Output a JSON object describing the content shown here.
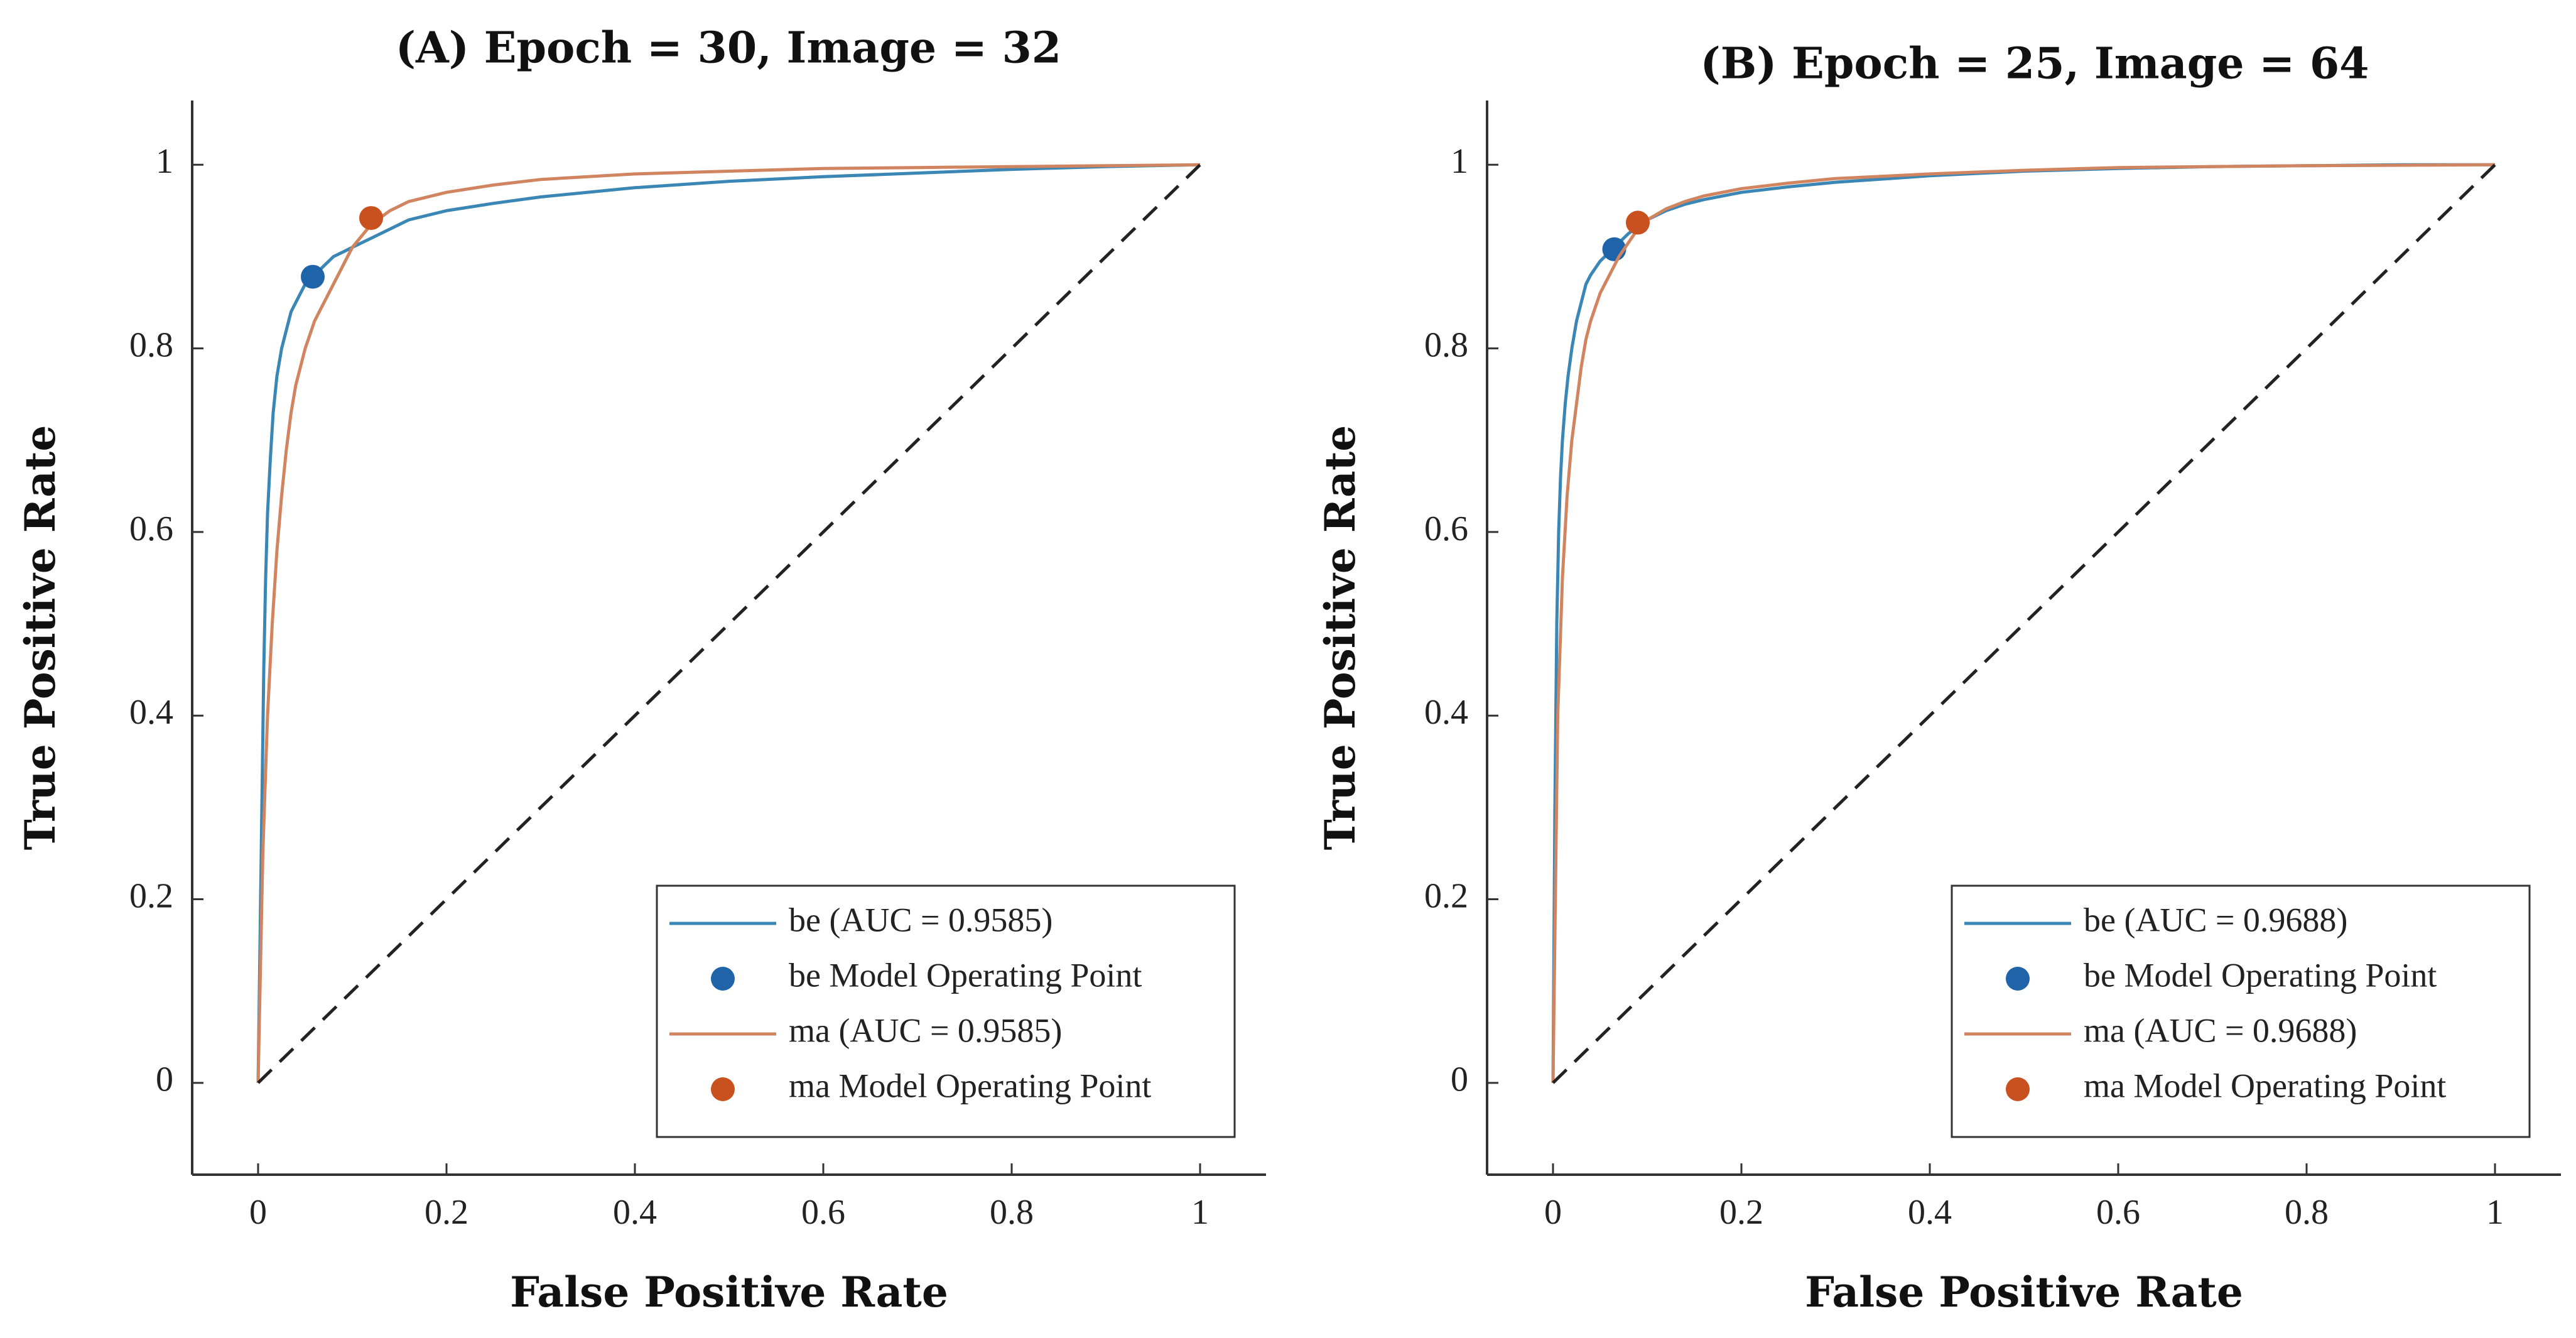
{
  "chart_data": [
    {
      "type": "line",
      "title": "(A) Epoch = 30, Image = 32",
      "xlabel": "False Positive Rate",
      "ylabel": "True Positive Rate",
      "xlim": [
        -0.07,
        1.07
      ],
      "ylim": [
        -0.1,
        1.07
      ],
      "xticks": [
        0,
        0.2,
        0.4,
        0.6,
        0.8,
        1
      ],
      "yticks": [
        0,
        0.2,
        0.4,
        0.6,
        0.8,
        1
      ],
      "xtick_labels": [
        "0",
        "0.2",
        "0.4",
        "0.6",
        "0.8",
        "1"
      ],
      "ytick_labels": [
        "0",
        "0.2",
        "0.4",
        "0.6",
        "0.8",
        "1"
      ],
      "grid": false,
      "legend_position": "bottom-right",
      "series": [
        {
          "name": "be (AUC = 0.9585)",
          "kind": "line",
          "color": "#3a86b4",
          "x": [
            0,
            0.002,
            0.004,
            0.006,
            0.008,
            0.01,
            0.013,
            0.016,
            0.02,
            0.025,
            0.03,
            0.035,
            0.04,
            0.045,
            0.05,
            0.06,
            0.07,
            0.08,
            0.09,
            0.1,
            0.12,
            0.14,
            0.16,
            0.2,
            0.25,
            0.3,
            0.4,
            0.5,
            0.6,
            0.7,
            0.8,
            0.9,
            1
          ],
          "y": [
            0,
            0.15,
            0.3,
            0.45,
            0.55,
            0.62,
            0.68,
            0.73,
            0.77,
            0.8,
            0.82,
            0.84,
            0.85,
            0.86,
            0.87,
            0.88,
            0.89,
            0.9,
            0.905,
            0.91,
            0.92,
            0.93,
            0.94,
            0.95,
            0.958,
            0.965,
            0.975,
            0.982,
            0.987,
            0.991,
            0.995,
            0.998,
            1
          ]
        },
        {
          "name": "be Model Operating Point",
          "kind": "point",
          "color": "#1f63a8",
          "x": [
            0.058
          ],
          "y": [
            0.878
          ]
        },
        {
          "name": "ma (AUC = 0.9585)",
          "kind": "line",
          "color": "#d08560",
          "x": [
            0,
            0.005,
            0.01,
            0.015,
            0.02,
            0.025,
            0.03,
            0.035,
            0.04,
            0.05,
            0.06,
            0.07,
            0.08,
            0.1,
            0.12,
            0.14,
            0.16,
            0.2,
            0.25,
            0.3,
            0.4,
            0.5,
            0.6,
            0.7,
            0.8,
            0.9,
            1
          ],
          "y": [
            0,
            0.25,
            0.4,
            0.5,
            0.58,
            0.64,
            0.69,
            0.73,
            0.76,
            0.8,
            0.83,
            0.85,
            0.87,
            0.91,
            0.935,
            0.95,
            0.96,
            0.97,
            0.978,
            0.984,
            0.99,
            0.993,
            0.996,
            0.997,
            0.998,
            0.999,
            1
          ]
        },
        {
          "name": "ma Model Operating Point",
          "kind": "point",
          "color": "#c9511f",
          "x": [
            0.12
          ],
          "y": [
            0.942
          ]
        },
        {
          "name": "chance",
          "kind": "dashed",
          "color": "#222222",
          "x": [
            0,
            1
          ],
          "y": [
            0,
            1
          ]
        }
      ],
      "legend": [
        {
          "label": "be (AUC = 0.9585)",
          "marker": "line",
          "color": "#3a86b4"
        },
        {
          "label": "be Model Operating Point",
          "marker": "dot",
          "color": "#1f63a8"
        },
        {
          "label": "ma (AUC = 0.9585)",
          "marker": "line",
          "color": "#d08560"
        },
        {
          "label": "ma Model Operating Point",
          "marker": "dot",
          "color": "#c9511f"
        }
      ]
    },
    {
      "type": "line",
      "title": "(B) Epoch = 25, Image = 64",
      "xlabel": "False Positive Rate",
      "ylabel": "True Positive Rate",
      "xlim": [
        -0.07,
        1.07
      ],
      "ylim": [
        -0.1,
        1.07
      ],
      "xticks": [
        0,
        0.2,
        0.4,
        0.6,
        0.8,
        1
      ],
      "yticks": [
        0,
        0.2,
        0.4,
        0.6,
        0.8,
        1
      ],
      "xtick_labels": [
        "0",
        "0.2",
        "0.4",
        "0.6",
        "0.8",
        "1"
      ],
      "ytick_labels": [
        "0",
        "0.2",
        "0.4",
        "0.6",
        "0.8",
        "1"
      ],
      "grid": false,
      "legend_position": "bottom-right",
      "series": [
        {
          "name": "be (AUC = 0.9688)",
          "kind": "line",
          "color": "#3a86b4",
          "x": [
            0,
            0.002,
            0.004,
            0.006,
            0.008,
            0.01,
            0.013,
            0.016,
            0.02,
            0.025,
            0.03,
            0.035,
            0.04,
            0.05,
            0.06,
            0.07,
            0.08,
            0.1,
            0.12,
            0.14,
            0.16,
            0.2,
            0.25,
            0.3,
            0.4,
            0.5,
            0.6,
            0.7,
            0.8,
            0.9,
            1
          ],
          "y": [
            0,
            0.3,
            0.5,
            0.6,
            0.66,
            0.7,
            0.74,
            0.77,
            0.8,
            0.83,
            0.85,
            0.87,
            0.88,
            0.895,
            0.905,
            0.915,
            0.925,
            0.94,
            0.95,
            0.957,
            0.962,
            0.97,
            0.976,
            0.981,
            0.988,
            0.993,
            0.996,
            0.998,
            0.999,
            1,
            1
          ]
        },
        {
          "name": "be Model Operating Point",
          "kind": "point",
          "color": "#1f63a8",
          "x": [
            0.065
          ],
          "y": [
            0.908
          ]
        },
        {
          "name": "ma (AUC = 0.9688)",
          "kind": "line",
          "color": "#d08560",
          "x": [
            0,
            0.005,
            0.01,
            0.015,
            0.02,
            0.025,
            0.03,
            0.035,
            0.04,
            0.05,
            0.06,
            0.07,
            0.08,
            0.09,
            0.1,
            0.12,
            0.14,
            0.16,
            0.2,
            0.25,
            0.3,
            0.4,
            0.5,
            0.6,
            0.8,
            1
          ],
          "y": [
            0,
            0.4,
            0.55,
            0.64,
            0.7,
            0.74,
            0.78,
            0.81,
            0.83,
            0.86,
            0.88,
            0.9,
            0.915,
            0.93,
            0.94,
            0.952,
            0.96,
            0.966,
            0.974,
            0.98,
            0.985,
            0.99,
            0.994,
            0.997,
            0.999,
            1
          ]
        },
        {
          "name": "ma Model Operating Point",
          "kind": "point",
          "color": "#c9511f",
          "x": [
            0.09
          ],
          "y": [
            0.937
          ]
        },
        {
          "name": "chance",
          "kind": "dashed",
          "color": "#222222",
          "x": [
            0,
            1
          ],
          "y": [
            0,
            1
          ]
        }
      ],
      "legend": [
        {
          "label": "be (AUC = 0.9688)",
          "marker": "line",
          "color": "#3a86b4"
        },
        {
          "label": "be Model Operating Point",
          "marker": "dot",
          "color": "#1f63a8"
        },
        {
          "label": "ma (AUC = 0.9688)",
          "marker": "line",
          "color": "#d08560"
        },
        {
          "label": "ma Model Operating Point",
          "marker": "dot",
          "color": "#c9511f"
        }
      ]
    }
  ]
}
